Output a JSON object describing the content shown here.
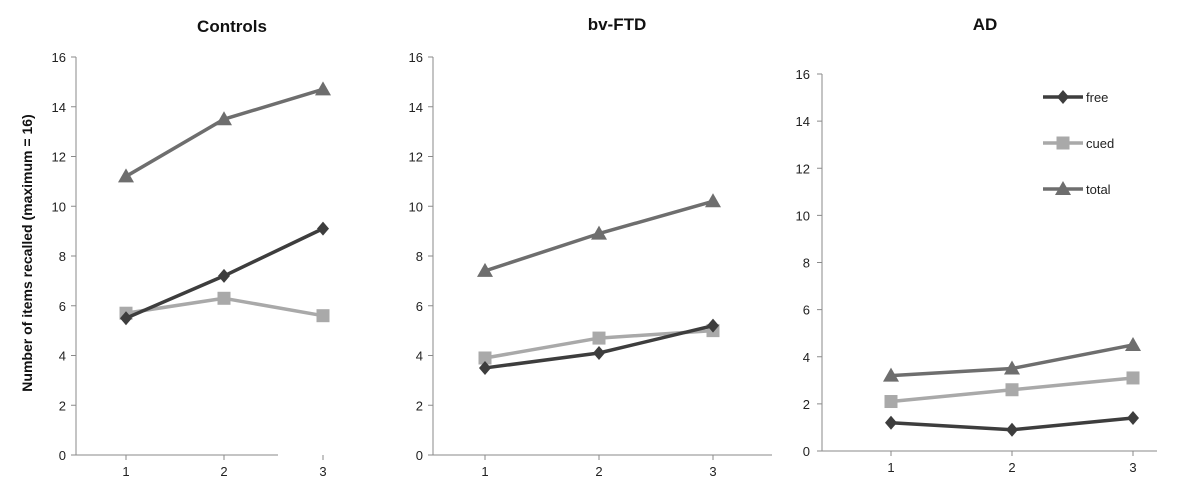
{
  "figure": {
    "ylabel": "Number of items recalled (maximum = 16)"
  },
  "legend": {
    "entries": [
      {
        "name": "free",
        "color": "#3d3d3d",
        "marker": "diamond"
      },
      {
        "name": "cued",
        "color": "#a9a9a9",
        "marker": "square"
      },
      {
        "name": "total",
        "color": "#6e6e6e",
        "marker": "triangle"
      }
    ]
  },
  "chart_data": [
    {
      "type": "line",
      "title": "Controls",
      "x": [
        1,
        2,
        3
      ],
      "ylim": [
        0,
        16
      ],
      "yticks": [
        0,
        2,
        4,
        6,
        8,
        10,
        12,
        14,
        16
      ],
      "grid": false,
      "series": [
        {
          "name": "free",
          "values": [
            5.5,
            7.2,
            9.1
          ]
        },
        {
          "name": "cued",
          "values": [
            5.7,
            6.3,
            5.6
          ]
        },
        {
          "name": "total",
          "values": [
            11.2,
            13.5,
            14.7
          ]
        }
      ]
    },
    {
      "type": "line",
      "title": "bv-FTD",
      "x": [
        1,
        2,
        3
      ],
      "ylim": [
        0,
        16
      ],
      "yticks": [
        0,
        2,
        4,
        6,
        8,
        10,
        12,
        14,
        16
      ],
      "grid": false,
      "series": [
        {
          "name": "free",
          "values": [
            3.5,
            4.1,
            5.2
          ]
        },
        {
          "name": "cued",
          "values": [
            3.9,
            4.7,
            5.0
          ]
        },
        {
          "name": "total",
          "values": [
            7.4,
            8.9,
            10.2
          ]
        }
      ]
    },
    {
      "type": "line",
      "title": "AD",
      "x": [
        1,
        2,
        3
      ],
      "ylim": [
        0,
        16
      ],
      "yticks": [
        0,
        2,
        4,
        6,
        8,
        10,
        12,
        14,
        16
      ],
      "grid": false,
      "legend_position": "top-right",
      "series": [
        {
          "name": "free",
          "values": [
            1.2,
            0.9,
            1.4
          ]
        },
        {
          "name": "cued",
          "values": [
            2.1,
            2.6,
            3.1
          ]
        },
        {
          "name": "total",
          "values": [
            3.2,
            3.5,
            4.5
          ]
        }
      ]
    }
  ]
}
